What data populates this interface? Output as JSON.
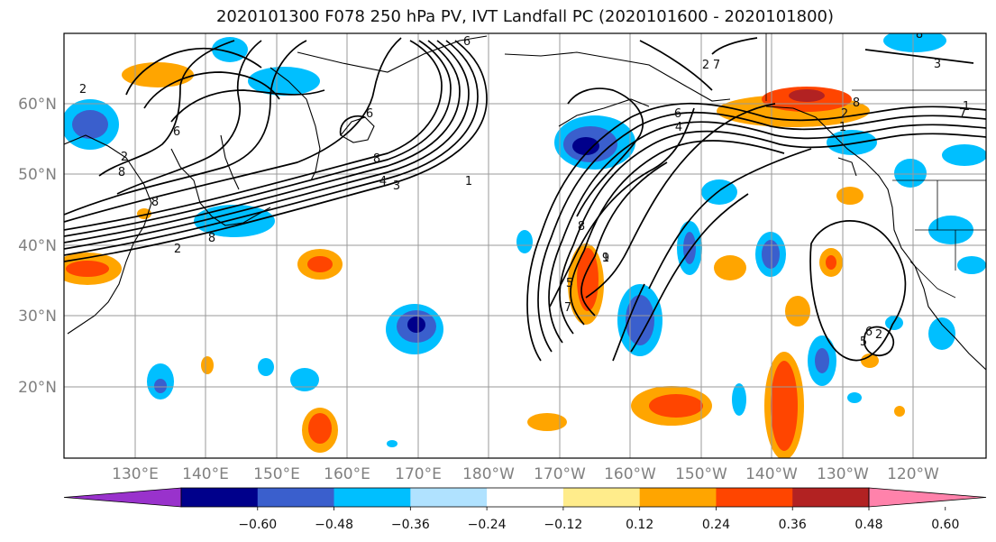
{
  "title": "2020101300 F078 250 hPa PV, IVT Landfall PC (2020101600 - 2020101800)",
  "lat_labels": [
    "60°N",
    "50°N",
    "40°N",
    "30°N",
    "20°N"
  ],
  "lon_labels": [
    "130°E",
    "140°E",
    "150°E",
    "160°E",
    "170°E",
    "180°W",
    "170°W",
    "160°W",
    "150°W",
    "140°W",
    "130°W",
    "120°W"
  ],
  "colorbar": {
    "colors": [
      "#9932cc",
      "#00008b",
      "#3a5fcd",
      "#00bfff",
      "#b0e2ff",
      "#ffffff",
      "#ffec8b",
      "#ffa500",
      "#ff4500",
      "#b22222",
      "#ff82ab"
    ],
    "tick_labels": [
      "−0.60",
      "−0.48",
      "−0.36",
      "−0.24",
      "−0.12",
      "0.12",
      "0.24",
      "0.36",
      "0.48",
      "0.60"
    ]
  },
  "contour_labels": [
    "2",
    "6",
    "8",
    "2",
    "8",
    "2",
    "8",
    "4",
    "3",
    "1",
    "6",
    "8",
    "6",
    "1",
    "9",
    "8",
    "5",
    "7",
    "4",
    "6",
    "2",
    "1",
    "8",
    "7",
    "2",
    "1",
    "3",
    "7",
    "8",
    "6",
    "5",
    "2"
  ]
}
